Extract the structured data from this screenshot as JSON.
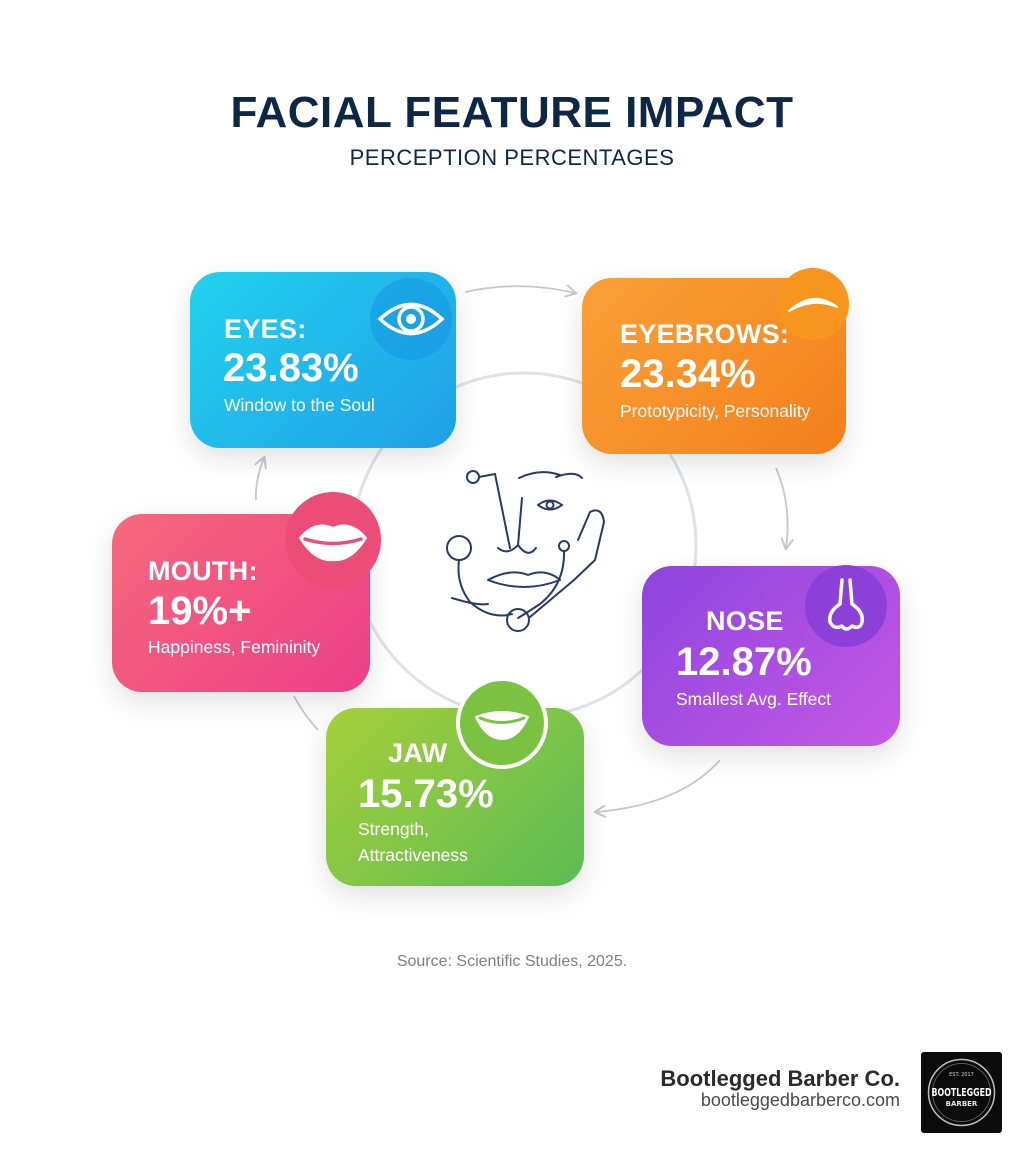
{
  "title": "FACIAL FEATURE IMPACT",
  "subtitle": "PERCEPTION PERCENTAGES",
  "features": {
    "eyes": {
      "label": "EYES:",
      "value": "23.83%",
      "desc": "Window to the Soul",
      "icon": "eye-icon",
      "color": "#1f9fe8"
    },
    "eyebrows": {
      "label": "EYEBROWS:",
      "value": "23.34%",
      "desc": "Prototypicity, Personality",
      "icon": "eyebrow-icon",
      "color": "#f37f1c"
    },
    "nose": {
      "label": "NOSE",
      "value": "12.87%",
      "desc": "Smallest Avg. Effect",
      "icon": "nose-icon",
      "color": "#9c49e0"
    },
    "jaw": {
      "label": "JAW",
      "value": "15.73%",
      "desc_line1": "Strength,",
      "desc_line2": "Attractiveness",
      "icon": "smile-icon",
      "color": "#7cc242"
    },
    "mouth": {
      "label": "MOUTH:",
      "value": "19%+",
      "desc": "Happiness, Femininity",
      "icon": "lips-icon",
      "color": "#ec3f88"
    }
  },
  "source": "Source: Scientific Studies, 2025.",
  "brand": {
    "name": "Bootlegged Barber Co.",
    "url": "bootleggedbarberco.com",
    "logo_text_top": "EST. 2017",
    "logo_text_main": "BOOTLEGGED",
    "logo_text_sub": "BARBER"
  }
}
